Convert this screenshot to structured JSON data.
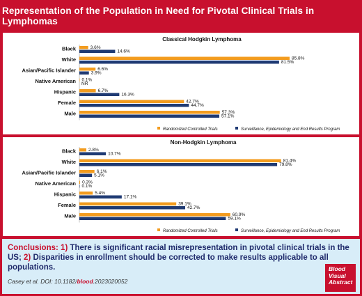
{
  "title": "Representation of the Population in Need for Pivotal Clinical Trials in Lymphomas",
  "colors": {
    "rct": "#f39c1f",
    "seer": "#1f3a73",
    "accent": "#c8102e",
    "conclusion_bg": "#d8edf8"
  },
  "legend": {
    "rct": "Randomized Controlled Trials",
    "seer": "Surveillance, Epidemiology and End Results Program"
  },
  "chart_data": [
    {
      "type": "bar",
      "orientation": "horizontal",
      "title": "Classical Hodgkin Lymphoma",
      "categories": [
        "Black",
        "White",
        "Asian/Pacific Islander",
        "Native American",
        "Hispanic",
        "Female",
        "Male"
      ],
      "series": [
        {
          "name": "Randomized Controlled Trials",
          "values": [
            3.6,
            85.8,
            6.6,
            0.1,
            6.7,
            42.7,
            57.3
          ],
          "labels": [
            "3.6%",
            "85.8%",
            "6.6%",
            "0.1%",
            "6.7%",
            "42.7%",
            "57.3%"
          ]
        },
        {
          "name": "Surveillance, Epidemiology and End Results Program",
          "values": [
            14.6,
            81.5,
            3.9,
            null,
            16.3,
            44.7,
            57.1
          ],
          "labels": [
            "14.6%",
            "81.5%",
            "3.9%",
            "NR",
            "16.3%",
            "44.7%",
            "57.1%"
          ]
        }
      ],
      "xlim": [
        0,
        100
      ],
      "legend_position": "bottom-right"
    },
    {
      "type": "bar",
      "orientation": "horizontal",
      "title": "Non-Hodgkin Lymphoma",
      "categories": [
        "Black",
        "White",
        "Asian/Pacific Islander",
        "Native American",
        "Hispanic",
        "Female",
        "Male"
      ],
      "series": [
        {
          "name": "Randomized Controlled Trials",
          "values": [
            2.8,
            81.4,
            6.1,
            0.3,
            5.4,
            39.1,
            60.9
          ],
          "labels": [
            "2.8%",
            "81.4%",
            "6.1%",
            "0.3%",
            "5.4%",
            "39.1%",
            "60.9%"
          ]
        },
        {
          "name": "Surveillance, Epidemiology and End Results Program",
          "values": [
            10.7,
            79.8,
            5.1,
            0.1,
            17.1,
            42.7,
            59.1
          ],
          "labels": [
            "10.7%",
            "79.8%",
            "5.1%",
            "0.1%",
            "17.1%",
            "42.7%",
            "59.1%"
          ]
        }
      ],
      "xlim": [
        0,
        100
      ],
      "legend_position": "bottom-right"
    }
  ],
  "conclusions": {
    "heading": "Conclusions:",
    "point1_num": "1)",
    "point1_text": "There is significant racial misrepresentation in pivotal clinical trials in the US;",
    "point2_num": "2)",
    "point2_text": "Disparities in enrollment should be corrected to make results applicable to all populations."
  },
  "citation": {
    "prefix": "Casey et al. DOI: 10.1182/",
    "journal": "blood",
    "suffix": ".2023020052"
  },
  "badge": {
    "line1": "Blood",
    "line2": "Visual",
    "line3": "Abstract"
  }
}
